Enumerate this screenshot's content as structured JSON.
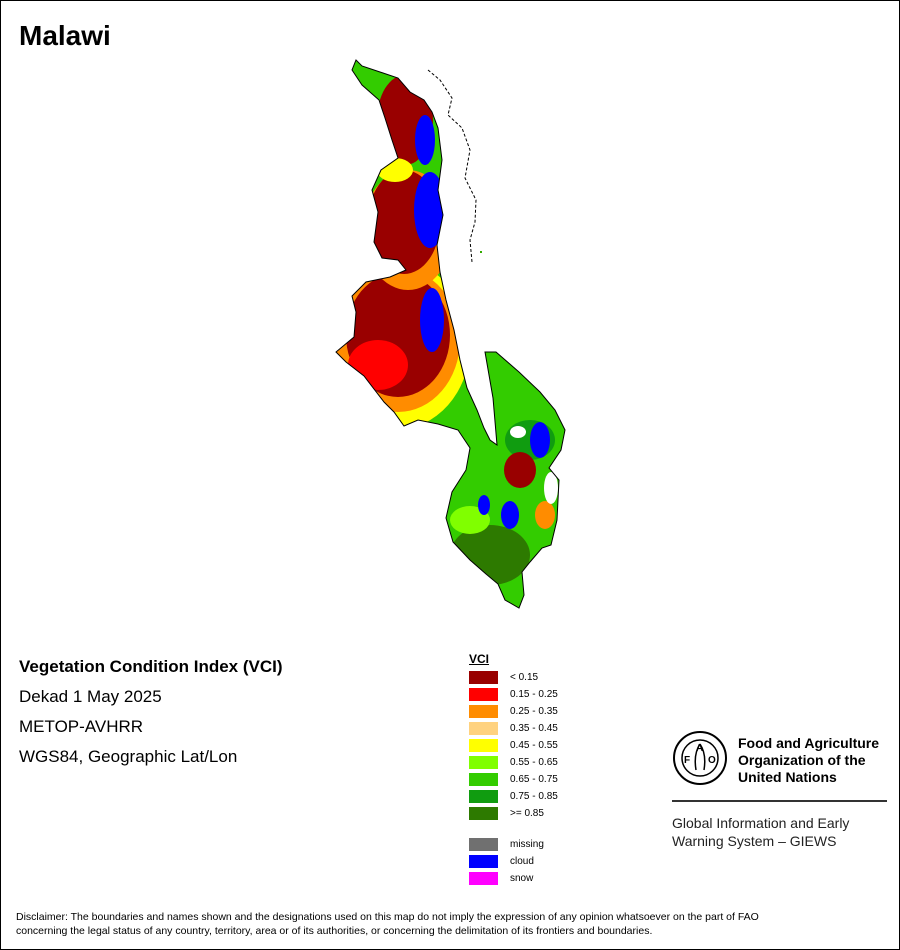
{
  "map": {
    "title": "Malawi",
    "info": {
      "title": "Vegetation Condition Index (VCI)",
      "dekad": "Dekad 1 May 2025",
      "sensor": "METOP-AVHRR",
      "projection": "WGS84, Geographic Lat/Lon"
    }
  },
  "legend": {
    "title": "VCI",
    "classes": [
      {
        "label": "< 0.15",
        "color": "#990000"
      },
      {
        "label": "0.15 - 0.25",
        "color": "#ff0000"
      },
      {
        "label": "0.25 - 0.35",
        "color": "#ff8c00"
      },
      {
        "label": "0.35 - 0.45",
        "color": "#ffd27f"
      },
      {
        "label": "0.45 - 0.55",
        "color": "#ffff00"
      },
      {
        "label": "0.55 - 0.65",
        "color": "#80ff00"
      },
      {
        "label": "0.65 - 0.75",
        "color": "#33cc00"
      },
      {
        "label": "0.75 - 0.85",
        "color": "#109c10"
      },
      {
        "label": ">= 0.85",
        "color": "#2d7a00"
      }
    ],
    "special": [
      {
        "label": "missing",
        "color": "#707070"
      },
      {
        "label": "cloud",
        "color": "#0000ff"
      },
      {
        "label": "snow",
        "color": "#ff00ff"
      }
    ]
  },
  "organization": {
    "name_lines": [
      "Food and Agriculture",
      "Organization of the",
      "United Nations"
    ],
    "program_lines": [
      "Global Information and Early",
      "Warning System – GIEWS"
    ],
    "logo_text": "FAO",
    "logo_motto": "FIAT PANIS"
  },
  "disclaimer": {
    "line1": "Disclaimer: The boundaries and names shown and the designations used on this map do not imply the expression of any opinion whatsoever on the part of FAO",
    "line2": "concerning the legal status of any country, territory, area or of its authorities, or concerning the delimitation of its frontiers and boundaries."
  }
}
